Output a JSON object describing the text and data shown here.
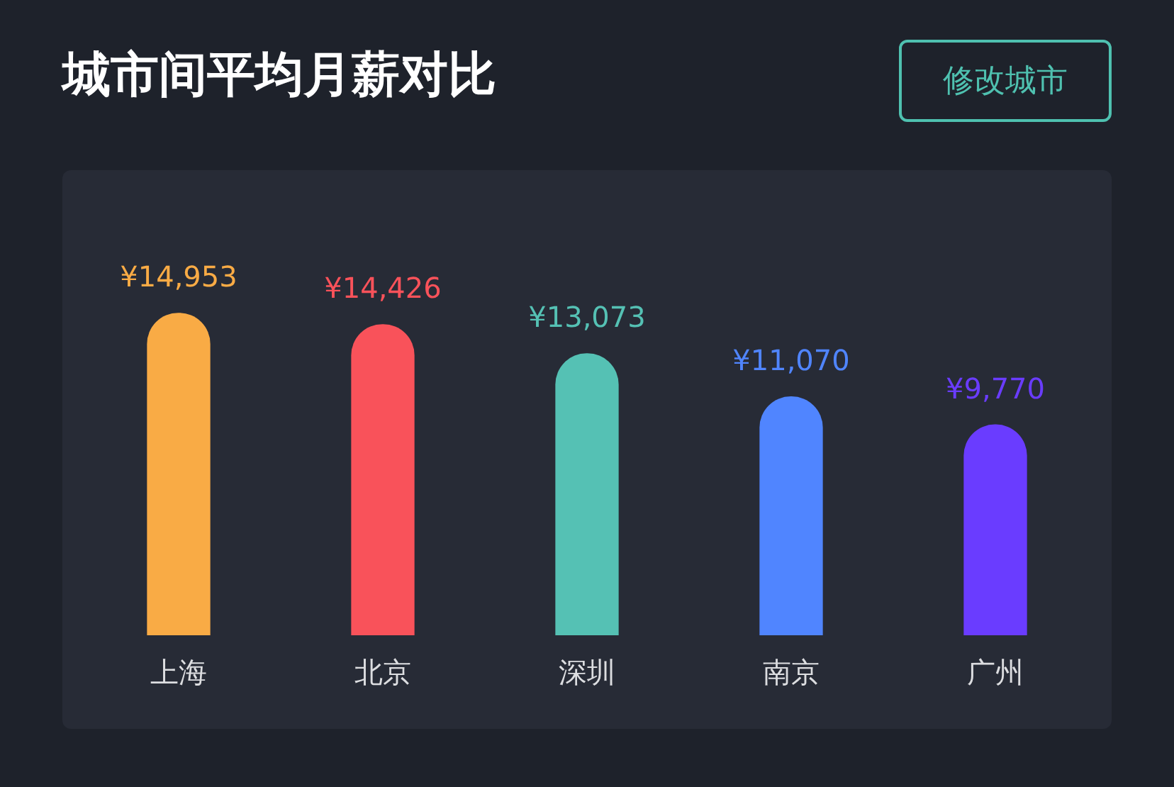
{
  "chart_data": {
    "type": "bar",
    "title": "城市间平均月薪对比",
    "categories": [
      "上海",
      "北京",
      "深圳",
      "南京",
      "广州"
    ],
    "values": [
      14953,
      14426,
      13073,
      11070,
      9770
    ],
    "colors": [
      "#f9ab45",
      "#f9525a",
      "#55c1b4",
      "#5085ff",
      "#6a3cff"
    ],
    "value_labels": [
      "¥14,953",
      "¥14,426",
      "¥13,073",
      "¥11,070",
      "¥9,770"
    ],
    "annotations": [
      "修改城市"
    ],
    "grid": false,
    "legend": false
  }
}
